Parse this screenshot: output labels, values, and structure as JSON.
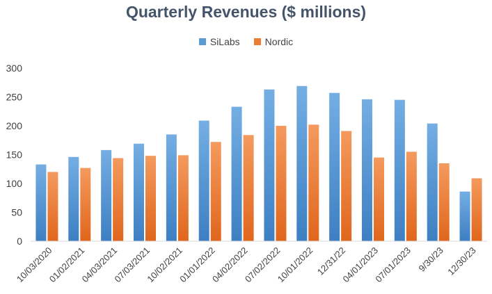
{
  "chart_data": {
    "type": "bar",
    "title": "Quarterly Revenues ($ millions)",
    "categories": [
      "10/03/2020",
      "01/02/2021",
      "04/03/2021",
      "07/03/2021",
      "10/02/2021",
      "01/01/2022",
      "04/02/2022",
      "07/02/2022",
      "10/01/2022",
      "12/31/22",
      "04/01/2023",
      "07/01/2023",
      "9/30/23",
      "12/30/23"
    ],
    "series": [
      {
        "name": "SiLabs",
        "color": "#5b9bd5",
        "values": [
          133,
          146,
          158,
          169,
          185,
          209,
          233,
          263,
          269,
          257,
          246,
          245,
          204,
          86
        ]
      },
      {
        "name": "Nordic",
        "color": "#ed7d31",
        "values": [
          120,
          127,
          144,
          148,
          149,
          172,
          184,
          200,
          202,
          191,
          145,
          155,
          135,
          109
        ]
      }
    ],
    "ylim": [
      0,
      300
    ],
    "yticks": [
      0,
      50,
      100,
      150,
      200,
      250,
      300
    ],
    "xlabel": "",
    "ylabel": "",
    "grid": false,
    "legend_position": "top"
  }
}
